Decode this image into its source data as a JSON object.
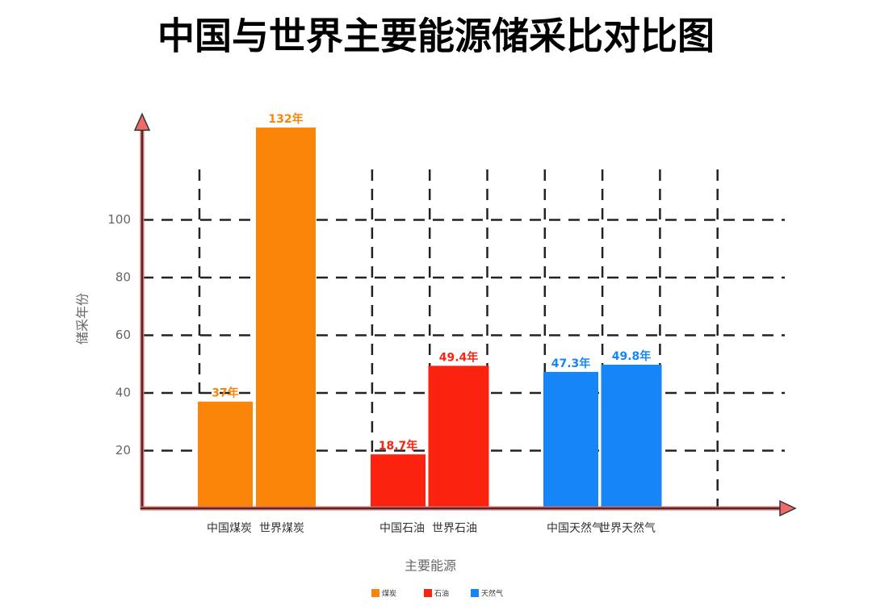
{
  "chart_data": {
    "type": "bar",
    "title": "中国与世界主要能源储采比对比图",
    "x_label": "主要能源",
    "y_label": "储采年份",
    "categories": [
      "中国煤炭",
      "世界煤炭",
      "中国石油",
      "世界石油",
      "中国天然气",
      "世界天然气"
    ],
    "series": [
      {
        "name": "煤炭",
        "color": "#fb8509",
        "values": [
          37,
          132,
          null,
          null,
          null,
          null
        ],
        "value_labels": [
          "37年",
          "132年",
          null,
          null,
          null,
          null
        ]
      },
      {
        "name": "石油",
        "color": "#fb2210",
        "values": [
          null,
          null,
          18.7,
          49.4,
          null,
          null
        ],
        "value_labels": [
          null,
          null,
          "18.7年",
          "49.4年",
          null,
          null
        ]
      },
      {
        "name": "天然气",
        "color": "#1585f7",
        "values": [
          null,
          null,
          null,
          null,
          47.3,
          49.8
        ],
        "value_labels": [
          null,
          null,
          null,
          null,
          "47.3年",
          "49.8年"
        ]
      }
    ],
    "ylim": [
      0,
      135
    ],
    "yticks": [
      20,
      40,
      60,
      80,
      100
    ],
    "grid": true,
    "legend": "bottom"
  }
}
